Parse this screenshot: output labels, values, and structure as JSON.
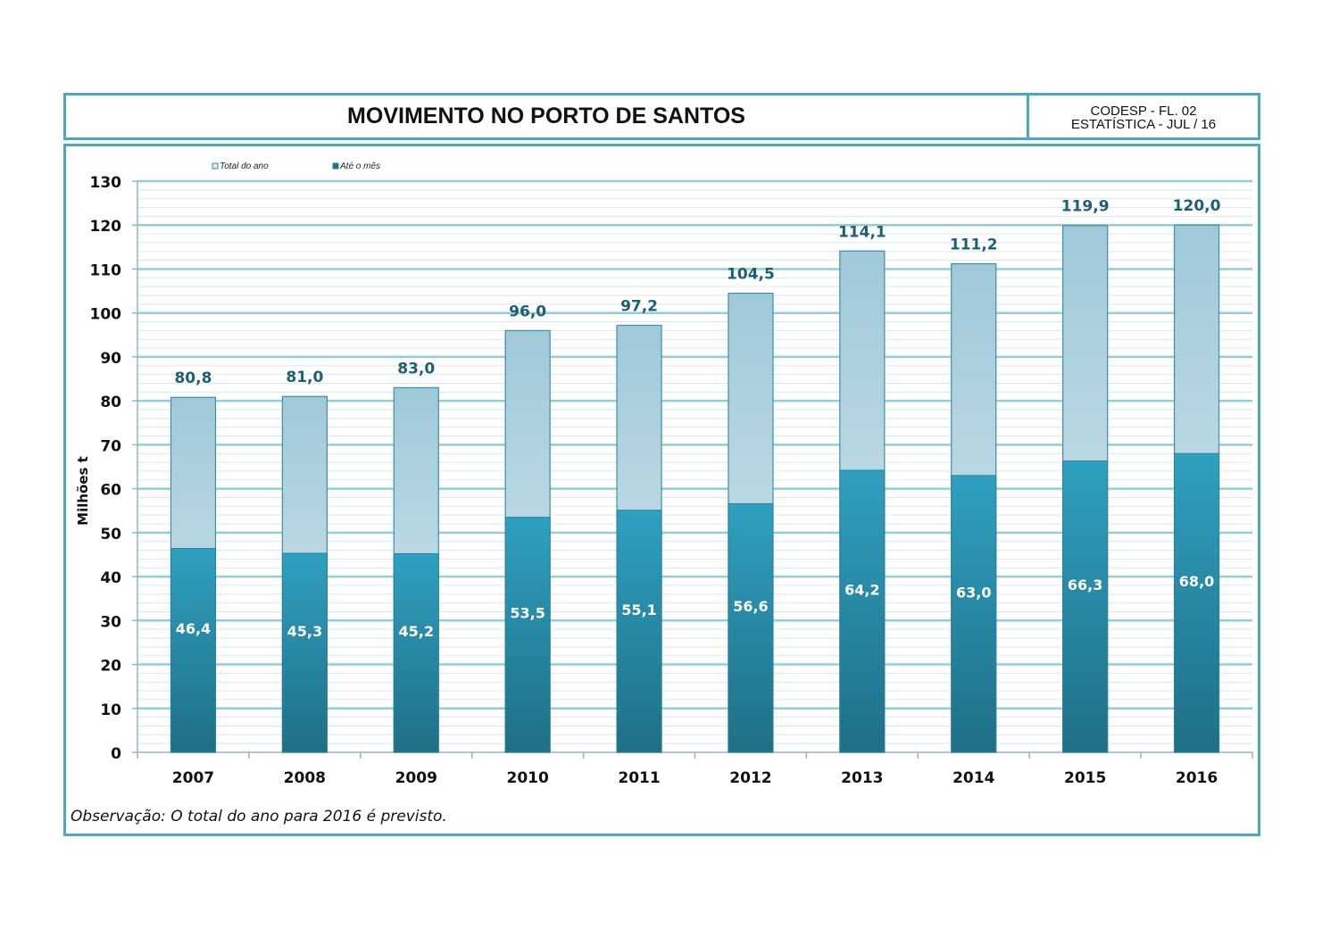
{
  "header": {
    "title": "MOVIMENTO NO PORTO DE SANTOS",
    "meta_line1": "CODESP - FL. 02",
    "meta_line2": "ESTATÍSTICA - JUL  /  16"
  },
  "note": "Observação: O total do ano para 2016 é previsto.",
  "colors": {
    "frame": "#4aa8bf",
    "total_top": "#9fc9d9",
    "total_bottom": "#dceaf0",
    "ate_top": "#2fa0c0",
    "ate_bottom": "#1f6f86",
    "label_total": "#1f5f73",
    "grid_major": "#8fd0d8",
    "grid_minor": "#d6e8f0"
  },
  "chart_data": {
    "type": "bar",
    "ylabel": "Milhões  t",
    "ylim": [
      0,
      130
    ],
    "yticks": [
      0,
      10,
      20,
      30,
      40,
      50,
      60,
      70,
      80,
      90,
      100,
      110,
      120,
      130
    ],
    "yticks_display": [
      "0",
      "10",
      "20",
      "30",
      "40",
      "50",
      "60",
      "70",
      "80",
      "90",
      "100",
      "110",
      "120",
      "130"
    ],
    "categories": [
      "2007",
      "2008",
      "2009",
      "2010",
      "2011",
      "2012",
      "2013",
      "2014",
      "2015",
      "2016"
    ],
    "legend_position": "top-left",
    "grid": true,
    "series": [
      {
        "name": "Total do ano",
        "values": [
          80.8,
          81.0,
          83.0,
          96.0,
          97.2,
          104.5,
          114.1,
          111.2,
          119.9,
          120.0
        ],
        "labels": [
          "80,8",
          "81,0",
          "83,0",
          "96,0",
          "97,2",
          "104,5",
          "114,1",
          "111,2",
          "119,9",
          "120,0"
        ]
      },
      {
        "name": "Até o mês",
        "values": [
          46.4,
          45.3,
          45.2,
          53.5,
          55.1,
          56.6,
          64.2,
          63.0,
          66.3,
          68.0
        ],
        "labels": [
          "46,4",
          "45,3",
          "45,2",
          "53,5",
          "55,1",
          "56,6",
          "64,2",
          "63,0",
          "66,3",
          "68,0"
        ]
      }
    ]
  }
}
